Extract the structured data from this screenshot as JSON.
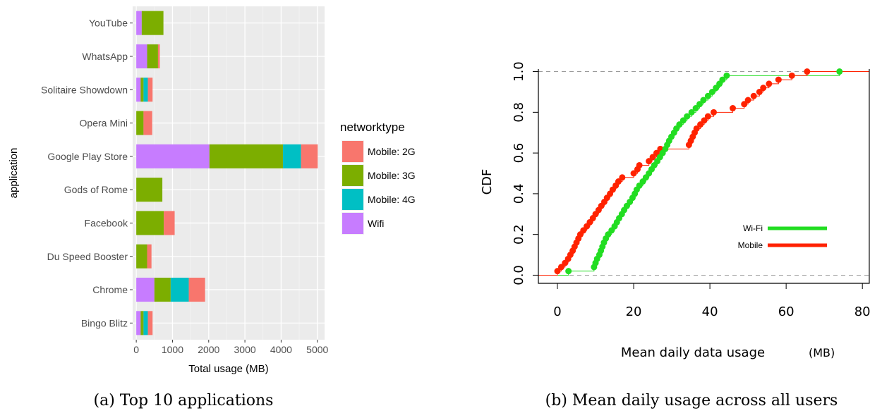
{
  "chart_data": [
    {
      "type": "bar",
      "orientation": "horizontal",
      "stacked": true,
      "caption": "(a) Top 10 applications",
      "xlabel": "Total usage (MB)",
      "ylabel": "application",
      "xlim": [
        -100,
        5200
      ],
      "xticks": [
        "0",
        "1000",
        "2000",
        "3000",
        "4000",
        "5000"
      ],
      "xtick_values": [
        0,
        1000,
        2000,
        3000,
        4000,
        5000
      ],
      "grid": true,
      "legend": {
        "title": "networktype",
        "position": "right"
      },
      "categories": [
        "YouTube",
        "WhatsApp",
        "Solitaire Showdown",
        "Opera Mini",
        "Google Play Store",
        "Gods of Rome",
        "Facebook",
        "Du Speed Booster",
        "Chrome",
        "Bingo Blitz"
      ],
      "series": [
        {
          "name": "Wifi",
          "color": "#c77cff",
          "values": [
            150,
            300,
            120,
            0,
            2020,
            0,
            0,
            0,
            500,
            120
          ]
        },
        {
          "name": "Mobile: 3G",
          "color": "#7cae00",
          "values": [
            600,
            300,
            80,
            200,
            2030,
            720,
            760,
            300,
            450,
            80
          ]
        },
        {
          "name": "Mobile: 4G",
          "color": "#00bfc4",
          "values": [
            0,
            0,
            120,
            0,
            500,
            0,
            0,
            0,
            500,
            120
          ]
        },
        {
          "name": "Mobile: 2G",
          "color": "#f8766d",
          "values": [
            0,
            50,
            130,
            240,
            460,
            0,
            300,
            120,
            450,
            130
          ]
        }
      ],
      "legend_order": [
        "Mobile: 2G",
        "Mobile: 3G",
        "Mobile: 4G",
        "Wifi"
      ]
    },
    {
      "type": "line",
      "subtype": "ecdf",
      "caption": "(b) Mean daily usage across all users",
      "xlabel": "Mean daily data usage",
      "xunit": "(MB)",
      "ylabel": "CDF",
      "xlim": [
        -5,
        82
      ],
      "ylim": [
        -0.04,
        1.04
      ],
      "xticks": [
        "0",
        "20",
        "40",
        "60",
        "80"
      ],
      "xtick_values": [
        0,
        20,
        40,
        60,
        80
      ],
      "yticks": [
        "0.0",
        "0.2",
        "0.4",
        "0.6",
        "0.8",
        "1.0"
      ],
      "ytick_values": [
        0,
        0.2,
        0.4,
        0.6,
        0.8,
        1.0
      ],
      "reference_lines": [
        0,
        1
      ],
      "legend": {
        "position": "right"
      },
      "series": [
        {
          "name": "Wi-Fi",
          "color": "#22dd22",
          "values": [
            [
              2.9,
              0.02
            ],
            [
              9.6,
              0.04
            ],
            [
              10.0,
              0.06
            ],
            [
              10.4,
              0.08
            ],
            [
              11.0,
              0.1
            ],
            [
              11.4,
              0.12
            ],
            [
              11.8,
              0.14
            ],
            [
              12.2,
              0.16
            ],
            [
              12.7,
              0.18
            ],
            [
              13.3,
              0.2
            ],
            [
              14.2,
              0.22
            ],
            [
              15.0,
              0.24
            ],
            [
              15.6,
              0.26
            ],
            [
              16.2,
              0.28
            ],
            [
              16.9,
              0.3
            ],
            [
              17.5,
              0.32
            ],
            [
              18.2,
              0.34
            ],
            [
              19.0,
              0.36
            ],
            [
              19.7,
              0.38
            ],
            [
              20.3,
              0.4
            ],
            [
              20.8,
              0.42
            ],
            [
              21.5,
              0.44
            ],
            [
              22.4,
              0.46
            ],
            [
              23.2,
              0.48
            ],
            [
              24.0,
              0.5
            ],
            [
              24.7,
              0.52
            ],
            [
              25.4,
              0.54
            ],
            [
              26.2,
              0.56
            ],
            [
              26.9,
              0.58
            ],
            [
              27.6,
              0.6
            ],
            [
              28.3,
              0.62
            ],
            [
              28.8,
              0.64
            ],
            [
              29.3,
              0.66
            ],
            [
              29.9,
              0.68
            ],
            [
              30.6,
              0.7
            ],
            [
              31.2,
              0.72
            ],
            [
              32.0,
              0.74
            ],
            [
              33.0,
              0.76
            ],
            [
              34.0,
              0.78
            ],
            [
              35.2,
              0.8
            ],
            [
              36.3,
              0.82
            ],
            [
              37.3,
              0.84
            ],
            [
              38.3,
              0.86
            ],
            [
              39.5,
              0.88
            ],
            [
              40.6,
              0.9
            ],
            [
              41.6,
              0.92
            ],
            [
              42.5,
              0.94
            ],
            [
              43.3,
              0.96
            ],
            [
              44.4,
              0.98
            ],
            [
              74.0,
              1.0
            ]
          ]
        },
        {
          "name": "Mobile",
          "color": "#ff2200",
          "values": [
            [
              0.0,
              0.02
            ],
            [
              1.0,
              0.04
            ],
            [
              2.0,
              0.06
            ],
            [
              2.8,
              0.08
            ],
            [
              3.4,
              0.1
            ],
            [
              4.0,
              0.12
            ],
            [
              4.5,
              0.14
            ],
            [
              5.0,
              0.16
            ],
            [
              5.5,
              0.18
            ],
            [
              6.0,
              0.2
            ],
            [
              6.8,
              0.22
            ],
            [
              7.7,
              0.24
            ],
            [
              8.5,
              0.26
            ],
            [
              9.3,
              0.28
            ],
            [
              10.0,
              0.3
            ],
            [
              10.8,
              0.32
            ],
            [
              11.5,
              0.34
            ],
            [
              12.3,
              0.36
            ],
            [
              13.0,
              0.38
            ],
            [
              13.8,
              0.4
            ],
            [
              14.5,
              0.42
            ],
            [
              15.3,
              0.44
            ],
            [
              16.0,
              0.46
            ],
            [
              17.0,
              0.48
            ],
            [
              20.0,
              0.5
            ],
            [
              21.0,
              0.52
            ],
            [
              21.5,
              0.54
            ],
            [
              24.0,
              0.56
            ],
            [
              25.0,
              0.58
            ],
            [
              26.0,
              0.6
            ],
            [
              27.0,
              0.62
            ],
            [
              34.5,
              0.64
            ],
            [
              35.0,
              0.66
            ],
            [
              35.5,
              0.68
            ],
            [
              36.0,
              0.7
            ],
            [
              36.5,
              0.72
            ],
            [
              37.5,
              0.74
            ],
            [
              38.5,
              0.76
            ],
            [
              39.5,
              0.78
            ],
            [
              41.0,
              0.8
            ],
            [
              46.0,
              0.82
            ],
            [
              49.0,
              0.84
            ],
            [
              50.0,
              0.86
            ],
            [
              51.5,
              0.88
            ],
            [
              53.0,
              0.9
            ],
            [
              54.0,
              0.92
            ],
            [
              55.5,
              0.94
            ],
            [
              58.0,
              0.96
            ],
            [
              61.5,
              0.98
            ],
            [
              65.5,
              1.0
            ]
          ]
        }
      ]
    }
  ]
}
